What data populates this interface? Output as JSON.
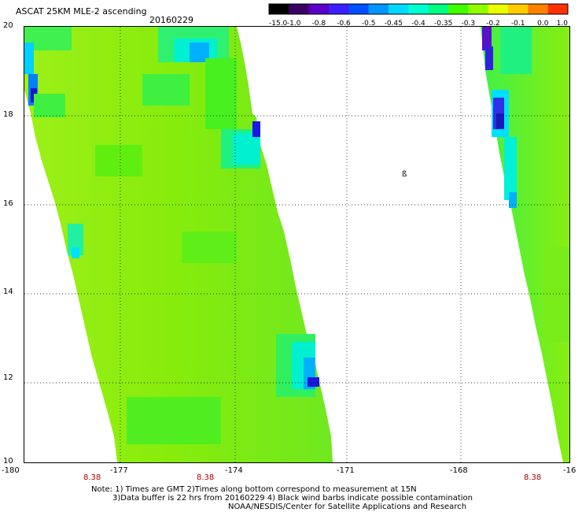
{
  "header": {
    "title": "ASCAT 25KM MLE-2 ascending",
    "date": "20160229"
  },
  "colorbar": {
    "labels": [
      "-15.0",
      "-1.0",
      "-0.8",
      "-0.6",
      "-0.5",
      "-0.45",
      "-0.4",
      "-0.35",
      "-0.3",
      "-0.2",
      "-0.1",
      "0.0",
      "1.0"
    ],
    "colors": [
      "#000000",
      "#3a0066",
      "#5a00c8",
      "#3a20ff",
      "#0050ff",
      "#0095ff",
      "#00d8ff",
      "#00ffd0",
      "#00ff80",
      "#40ff00",
      "#90ff00",
      "#e8ff00",
      "#ffcc00",
      "#ff8000",
      "#ff3000"
    ]
  },
  "axes": {
    "y_ticks": [
      "20",
      "18",
      "16",
      "14",
      "12",
      "10"
    ],
    "x_ticks": [
      "-180",
      "-177",
      "-174",
      "-171",
      "-168",
      "-16"
    ],
    "times": [
      "8.38",
      "8.38",
      "8.38"
    ]
  },
  "map_label": "ß",
  "notes": {
    "line1": "Note: 1) Times are GMT 2)Times along bottom correspond to measurement at 15N",
    "line2": "3)Data buffer is 22 hrs from 20160229 4) Black wind barbs indicate possible contamination",
    "line3": "NOAA/NESDIS/Center for Satellite Applications and Research"
  },
  "palette": {
    "swath_base": "#80f000",
    "swath_light": "#a0f820",
    "swath_green": "#30f030",
    "swath_cyan": "#00f0c8",
    "swath_blue": "#00b0ff",
    "swath_dark": "#1818e0",
    "swath_purple": "#5010c8"
  }
}
